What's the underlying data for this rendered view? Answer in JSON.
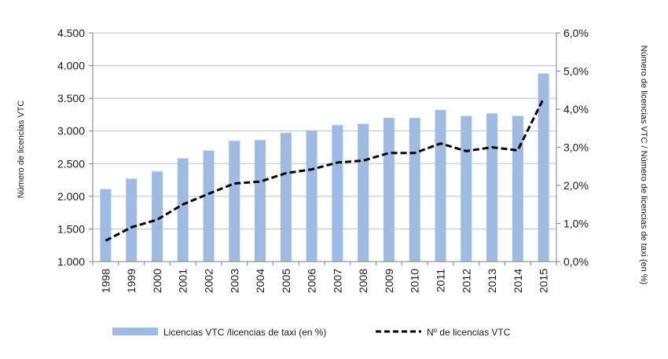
{
  "chart_data": {
    "type": "bar",
    "categories": [
      "1998",
      "1999",
      "2000",
      "2001",
      "2002",
      "2003",
      "2004",
      "2005",
      "2006",
      "2007",
      "2008",
      "2009",
      "2010",
      "2011",
      "2012",
      "2013",
      "2014",
      "2015"
    ],
    "series": [
      {
        "name": "Licencias VTC /licencias de taxi (en %)",
        "type": "bar",
        "axis": "left",
        "color": "#9dbbe3",
        "values": [
          2110,
          2270,
          2380,
          2580,
          2700,
          2850,
          2860,
          2970,
          3010,
          3090,
          3110,
          3200,
          3200,
          3320,
          3230,
          3270,
          3230,
          3880
        ]
      },
      {
        "name": "Nº de licencias VTC",
        "type": "line",
        "style": "dashed",
        "axis": "right",
        "color": "#000000",
        "values": [
          0.55,
          0.9,
          1.1,
          1.5,
          1.78,
          2.05,
          2.1,
          2.32,
          2.42,
          2.6,
          2.65,
          2.85,
          2.85,
          3.1,
          2.9,
          3.0,
          2.92,
          4.28
        ]
      }
    ],
    "y_left": {
      "label": "Número de licencias VTC",
      "min": 1000,
      "max": 4500,
      "ticks": [
        "1.000",
        "1.500",
        "2.000",
        "2.500",
        "3.000",
        "3.500",
        "4.000",
        "4.500"
      ]
    },
    "y_right": {
      "label": "Número de licencias VTC / Número de licencias de taxi (en %)",
      "min": 0,
      "max": 6,
      "ticks": [
        "0,0%",
        "1,0%",
        "2,0%",
        "3,0%",
        "4,0%",
        "5,0%",
        "6,0%"
      ]
    },
    "grid": true,
    "legend": "bottom-center"
  }
}
